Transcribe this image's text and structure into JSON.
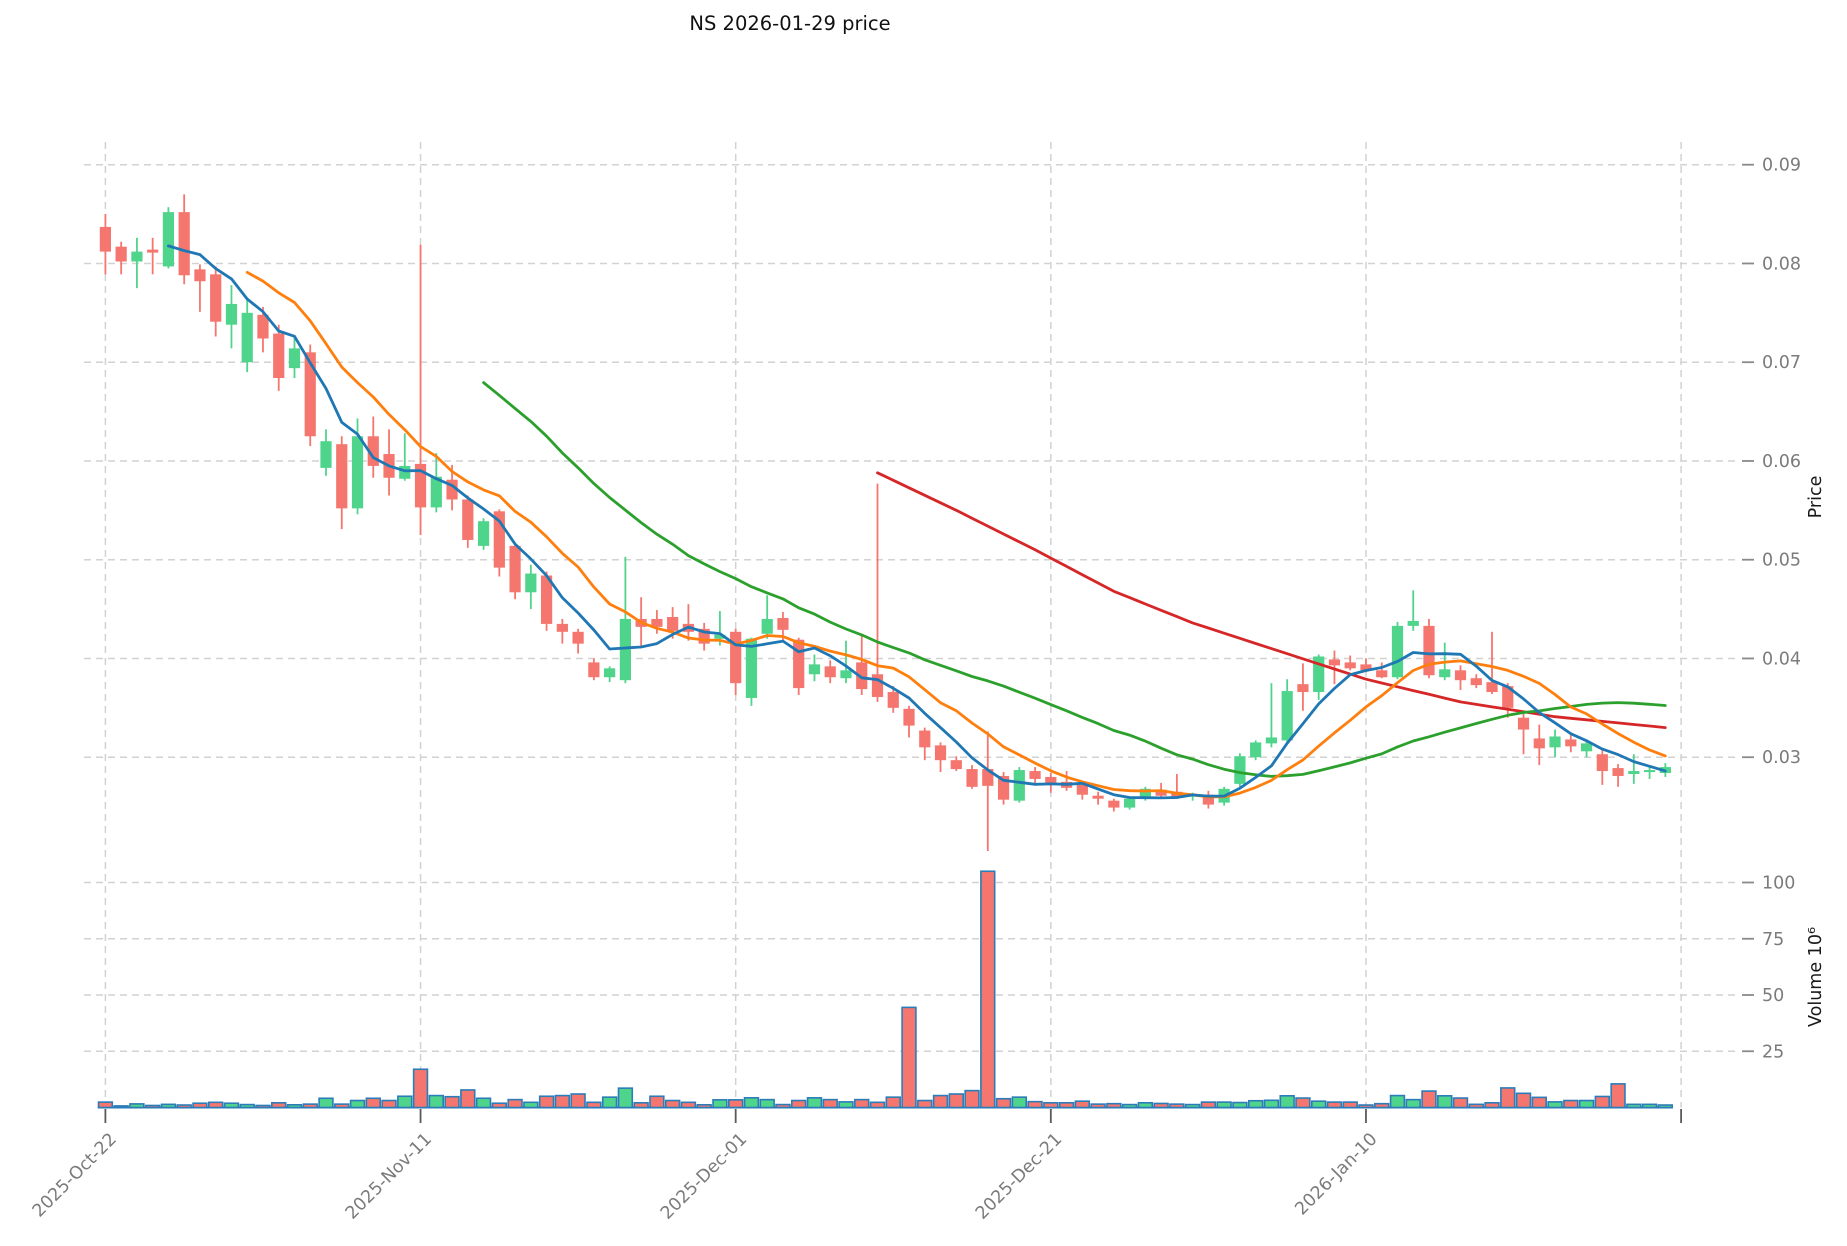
{
  "title": "NS  2026-01-29  price",
  "price_axis": {
    "label": "Price",
    "tick_labels": [
      "0.09",
      "0.08",
      "0.07",
      "0.06",
      "0.05",
      "0.04",
      "0.03"
    ],
    "tick_values": [
      0.09,
      0.08,
      0.07,
      0.06,
      0.05,
      0.04,
      0.03
    ]
  },
  "volume_axis": {
    "label": "Volume  10⁶",
    "tick_labels": [
      "100",
      "75",
      "50",
      "25"
    ],
    "tick_values": [
      100,
      75,
      50,
      25
    ]
  },
  "x_axis": {
    "labels": [
      "2025-Oct-22",
      "2025-Nov-11",
      "2025-Dec-01",
      "2025-Dec-21",
      "2026-Jan-10"
    ],
    "label_indices": [
      0,
      20,
      40,
      60,
      80
    ],
    "gridline_indices": [
      0,
      20,
      40,
      60,
      80,
      100
    ]
  },
  "colors": {
    "up": "#4fd48b",
    "down": "#f4766e",
    "volume_edge": "#2b7cb8",
    "ma_blue": "#1f77b4",
    "ma_orange": "#ff7f0e",
    "ma_green": "#2ca02c",
    "ma_red": "#d62728",
    "grid": "#d2d2d2",
    "tick": "#8a8a8a",
    "tick_label": "#7b7b7b",
    "title_color": "#111111",
    "axis_label_color": "#1a1a1a",
    "background": "#ffffff"
  },
  "chart_data": {
    "type": "candlestick",
    "title": "NS  2026-01-29  price",
    "start_date": "2025-10-22",
    "frequency": "daily",
    "ylabel": "Price",
    "ylabel_volume": "Volume  10⁶",
    "price_ylim": [
      0.0203,
      0.0923
    ],
    "volume_ylim": [
      0,
      112
    ],
    "grid": "dashed",
    "ohlcv_order": [
      "open",
      "high",
      "low",
      "close",
      "volume_millions"
    ],
    "candles": [
      [
        0.0837,
        0.085,
        0.0789,
        0.0812,
        2.4
      ],
      [
        0.0817,
        0.0822,
        0.0789,
        0.0802,
        0.7
      ],
      [
        0.0802,
        0.0826,
        0.0775,
        0.0812,
        1.6
      ],
      [
        0.0814,
        0.0826,
        0.0789,
        0.0811,
        0.9
      ],
      [
        0.0797,
        0.0857,
        0.0795,
        0.0852,
        1.4
      ],
      [
        0.0852,
        0.087,
        0.0779,
        0.0788,
        1.1
      ],
      [
        0.0794,
        0.0799,
        0.0751,
        0.0782,
        1.9
      ],
      [
        0.0789,
        0.0797,
        0.0726,
        0.0741,
        2.3
      ],
      [
        0.0738,
        0.0778,
        0.0714,
        0.0759,
        1.9
      ],
      [
        0.07,
        0.0763,
        0.069,
        0.075,
        1.3
      ],
      [
        0.0748,
        0.0756,
        0.071,
        0.0724,
        0.9
      ],
      [
        0.0729,
        0.0738,
        0.0671,
        0.0684,
        2.1
      ],
      [
        0.0694,
        0.0726,
        0.0684,
        0.0714,
        1.2
      ],
      [
        0.071,
        0.0718,
        0.0615,
        0.0625,
        1.5
      ],
      [
        0.0593,
        0.0632,
        0.0585,
        0.062,
        4.1
      ],
      [
        0.0617,
        0.0625,
        0.0531,
        0.0552,
        1.5
      ],
      [
        0.0552,
        0.0643,
        0.0546,
        0.0625,
        3.1
      ],
      [
        0.0625,
        0.0645,
        0.0583,
        0.0595,
        4.1
      ],
      [
        0.0607,
        0.0632,
        0.0565,
        0.0583,
        3.1
      ],
      [
        0.0582,
        0.0628,
        0.058,
        0.0595,
        5.0
      ],
      [
        0.0597,
        0.0819,
        0.0525,
        0.0553,
        17.0
      ],
      [
        0.0553,
        0.0608,
        0.0548,
        0.0584,
        5.3
      ],
      [
        0.0581,
        0.0596,
        0.055,
        0.0561,
        4.8
      ],
      [
        0.0561,
        0.0565,
        0.0512,
        0.052,
        7.8
      ],
      [
        0.0514,
        0.0542,
        0.051,
        0.0539,
        4.1
      ],
      [
        0.0549,
        0.0551,
        0.0483,
        0.0492,
        1.9
      ],
      [
        0.0514,
        0.0516,
        0.046,
        0.0467,
        3.5
      ],
      [
        0.0467,
        0.0495,
        0.045,
        0.0486,
        2.3
      ],
      [
        0.0484,
        0.0488,
        0.0428,
        0.0435,
        5.0
      ],
      [
        0.0435,
        0.044,
        0.0415,
        0.0427,
        5.3
      ],
      [
        0.0427,
        0.043,
        0.0405,
        0.0415,
        6.0
      ],
      [
        0.0396,
        0.04,
        0.0378,
        0.0381,
        2.3
      ],
      [
        0.0381,
        0.0392,
        0.0376,
        0.039,
        4.6
      ],
      [
        0.0378,
        0.0503,
        0.0375,
        0.044,
        8.6
      ],
      [
        0.044,
        0.0462,
        0.0412,
        0.0432,
        2.1
      ],
      [
        0.044,
        0.0449,
        0.0425,
        0.0432,
        5.0
      ],
      [
        0.0442,
        0.0452,
        0.042,
        0.0428,
        3.1
      ],
      [
        0.0435,
        0.0455,
        0.0418,
        0.0427,
        2.3
      ],
      [
        0.043,
        0.0436,
        0.0408,
        0.0415,
        1.2
      ],
      [
        0.042,
        0.0448,
        0.0413,
        0.0424,
        3.4
      ],
      [
        0.0427,
        0.043,
        0.0363,
        0.0375,
        3.4
      ],
      [
        0.036,
        0.0421,
        0.0352,
        0.042,
        4.3
      ],
      [
        0.0425,
        0.0464,
        0.042,
        0.044,
        3.5
      ],
      [
        0.0441,
        0.0447,
        0.0417,
        0.0429,
        1.3
      ],
      [
        0.0419,
        0.0421,
        0.0363,
        0.037,
        3.1
      ],
      [
        0.0384,
        0.0404,
        0.0377,
        0.0394,
        4.3
      ],
      [
        0.0392,
        0.0398,
        0.0375,
        0.0381,
        3.5
      ],
      [
        0.038,
        0.0418,
        0.0375,
        0.0388,
        2.5
      ],
      [
        0.0396,
        0.0423,
        0.0363,
        0.0369,
        3.5
      ],
      [
        0.0384,
        0.0577,
        0.0356,
        0.0361,
        2.3
      ],
      [
        0.0366,
        0.0372,
        0.0345,
        0.035,
        4.6
      ],
      [
        0.0349,
        0.0352,
        0.032,
        0.0332,
        44.5
      ],
      [
        0.0327,
        0.033,
        0.0297,
        0.031,
        3.1
      ],
      [
        0.0312,
        0.0315,
        0.0285,
        0.0297,
        5.3
      ],
      [
        0.0297,
        0.0301,
        0.0286,
        0.0288,
        6.0
      ],
      [
        0.0288,
        0.0292,
        0.0268,
        0.027,
        7.5
      ],
      [
        0.0288,
        0.0326,
        0.0205,
        0.0271,
        105.0
      ],
      [
        0.0281,
        0.0285,
        0.0252,
        0.0257,
        3.9
      ],
      [
        0.0256,
        0.029,
        0.0254,
        0.0287,
        4.6
      ],
      [
        0.0286,
        0.029,
        0.0274,
        0.0278,
        2.6
      ],
      [
        0.028,
        0.0284,
        0.0264,
        0.0272,
        2.1
      ],
      [
        0.0275,
        0.0286,
        0.0266,
        0.0269,
        2.1
      ],
      [
        0.0272,
        0.0276,
        0.0257,
        0.0262,
        2.8
      ],
      [
        0.0261,
        0.0265,
        0.0252,
        0.0258,
        1.5
      ],
      [
        0.0256,
        0.0258,
        0.0245,
        0.0249,
        1.7
      ],
      [
        0.0249,
        0.026,
        0.0247,
        0.0258,
        1.3
      ],
      [
        0.0258,
        0.027,
        0.0256,
        0.0268,
        2.1
      ],
      [
        0.0267,
        0.0274,
        0.0259,
        0.0261,
        1.8
      ],
      [
        0.0265,
        0.0283,
        0.0258,
        0.026,
        1.5
      ],
      [
        0.026,
        0.0264,
        0.0256,
        0.0262,
        1.3
      ],
      [
        0.0262,
        0.0266,
        0.0248,
        0.0252,
        2.4
      ],
      [
        0.0254,
        0.027,
        0.0251,
        0.0268,
        2.4
      ],
      [
        0.0273,
        0.0304,
        0.027,
        0.0301,
        2.2
      ],
      [
        0.03,
        0.0317,
        0.0297,
        0.0315,
        3.0
      ],
      [
        0.0314,
        0.0375,
        0.031,
        0.032,
        3.2
      ],
      [
        0.0317,
        0.0379,
        0.0315,
        0.0367,
        5.2
      ],
      [
        0.0374,
        0.0395,
        0.0347,
        0.0366,
        4.2
      ],
      [
        0.0366,
        0.0404,
        0.0358,
        0.0402,
        2.8
      ],
      [
        0.0399,
        0.0408,
        0.0374,
        0.0393,
        2.4
      ],
      [
        0.0396,
        0.0403,
        0.0388,
        0.039,
        2.4
      ],
      [
        0.0394,
        0.04,
        0.0386,
        0.0388,
        1.1
      ],
      [
        0.0388,
        0.0396,
        0.038,
        0.0381,
        1.7
      ],
      [
        0.0381,
        0.0437,
        0.0379,
        0.0433,
        5.3
      ],
      [
        0.0433,
        0.0469,
        0.0428,
        0.0438,
        3.5
      ],
      [
        0.0433,
        0.044,
        0.038,
        0.0383,
        7.3
      ],
      [
        0.0381,
        0.0416,
        0.0378,
        0.0389,
        5.2
      ],
      [
        0.0388,
        0.0393,
        0.0368,
        0.0378,
        4.2
      ],
      [
        0.038,
        0.0384,
        0.037,
        0.0373,
        1.4
      ],
      [
        0.0376,
        0.0427,
        0.0364,
        0.0366,
        2.1
      ],
      [
        0.0372,
        0.0375,
        0.034,
        0.035,
        8.7
      ],
      [
        0.034,
        0.0344,
        0.0303,
        0.0328,
        6.3
      ],
      [
        0.0319,
        0.0333,
        0.0292,
        0.0309,
        4.5
      ],
      [
        0.031,
        0.0328,
        0.03,
        0.0321,
        2.5
      ],
      [
        0.0318,
        0.0325,
        0.0305,
        0.0311,
        3.1
      ],
      [
        0.0306,
        0.0318,
        0.03,
        0.0314,
        3.1
      ],
      [
        0.0303,
        0.0307,
        0.0272,
        0.0286,
        4.9
      ],
      [
        0.0289,
        0.0293,
        0.027,
        0.0281,
        10.5
      ],
      [
        0.0283,
        0.0303,
        0.0273,
        0.0286,
        1.4
      ],
      [
        0.0285,
        0.0292,
        0.0278,
        0.0287,
        1.4
      ],
      [
        0.0284,
        0.0294,
        0.028,
        0.029,
        1.1
      ]
    ],
    "moving_averages": {
      "sma_blue_period": 5,
      "sma_orange_period": 10,
      "sma_green_period": 25,
      "red_line_waypoints": [
        [
          49,
          0.0588
        ],
        [
          54,
          0.055
        ],
        [
          59,
          0.051
        ],
        [
          64,
          0.0468
        ],
        [
          69,
          0.0436
        ],
        [
          74,
          0.041
        ],
        [
          80,
          0.0379
        ],
        [
          86,
          0.0356
        ],
        [
          92,
          0.0341
        ],
        [
          99,
          0.033
        ]
      ]
    }
  }
}
